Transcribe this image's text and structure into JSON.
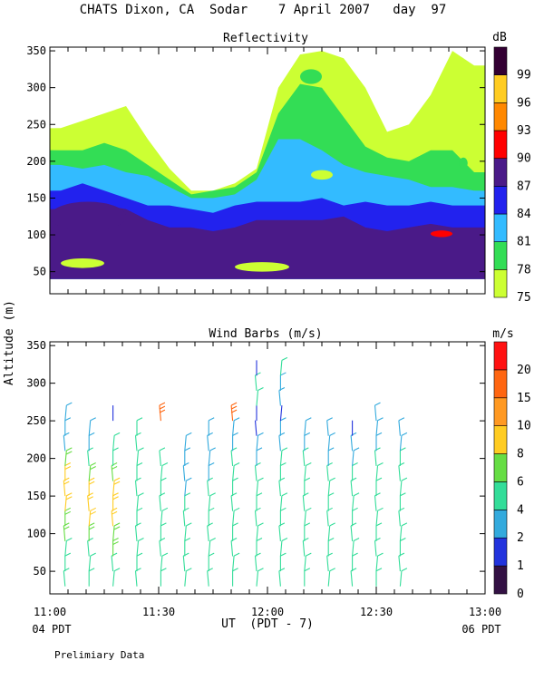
{
  "header": {
    "title": "CHATS Dixon, CA  Sodar    7 April 2007   day  97"
  },
  "shared": {
    "ylabel": "Altitude (m)",
    "xlabel": "UT  (PDT - 7)",
    "x_left_note": "04 PDT",
    "x_right_note": "06 PDT",
    "footer": "Prelimiary Data",
    "x_tick_labels": [
      "11:00",
      "11:30",
      "12:00",
      "12:30",
      "13:00"
    ]
  },
  "colors": {
    "reflectivity_levels": [
      "#ccff33",
      "#33dd55",
      "#33bbff",
      "#2222ee",
      "#4a1a88",
      "#ff0000",
      "#ff8800",
      "#ffcc22",
      "#330033"
    ],
    "wind_levels": [
      "#331144",
      "#2233dd",
      "#33aadd",
      "#33dd99",
      "#66dd44",
      "#ffcc22",
      "#ff9922",
      "#ff6611",
      "#ff1111"
    ]
  },
  "chart_data": [
    {
      "type": "heatmap",
      "title": "Reflectivity",
      "ylabel": "Altitude (m)",
      "xlim": [
        11.0,
        13.0
      ],
      "ylim": [
        20,
        355
      ],
      "y_ticks": [
        50,
        100,
        150,
        200,
        250,
        300,
        350
      ],
      "colorbar": {
        "unit": "dB",
        "levels": [
          "75",
          "78",
          "81",
          "84",
          "87",
          "90",
          "93",
          "96",
          "99"
        ]
      },
      "x_hours": [
        11.05,
        11.15,
        11.25,
        11.35,
        11.45,
        11.55,
        11.65,
        11.75,
        11.85,
        11.95,
        12.05,
        12.15,
        12.25,
        12.35,
        12.45,
        12.55,
        12.65,
        12.75,
        12.85,
        12.95
      ],
      "contours": [
        {
          "level": "75",
          "top_altitude_m": [
            245,
            255,
            265,
            275,
            230,
            190,
            160,
            160,
            170,
            190,
            300,
            345,
            350,
            340,
            300,
            240,
            250,
            290,
            350,
            330
          ]
        },
        {
          "level": "78",
          "top_altitude_m": [
            215,
            215,
            225,
            215,
            195,
            175,
            155,
            160,
            165,
            185,
            265,
            305,
            300,
            260,
            220,
            205,
            200,
            215,
            215,
            185
          ]
        },
        {
          "level": "81",
          "top_altitude_m": [
            195,
            190,
            195,
            185,
            180,
            165,
            150,
            150,
            155,
            175,
            230,
            230,
            215,
            195,
            185,
            180,
            175,
            165,
            165,
            160
          ]
        },
        {
          "level": "84",
          "top_altitude_m": [
            160,
            170,
            160,
            150,
            140,
            140,
            135,
            130,
            140,
            145,
            145,
            145,
            150,
            140,
            145,
            140,
            140,
            145,
            140,
            140
          ]
        },
        {
          "level": "87",
          "top_altitude_m": [
            135,
            135,
            140,
            135,
            120,
            110,
            110,
            105,
            110,
            120,
            120,
            120,
            120,
            125,
            110,
            105,
            110,
            115,
            110,
            110
          ]
        }
      ],
      "cells": [
        {
          "x0": 11.0,
          "x1": 11.35,
          "y0": 105,
          "y1": 145,
          "level": "87"
        },
        {
          "x0": 12.75,
          "x1": 12.85,
          "y0": 97,
          "y1": 106,
          "level": "90"
        },
        {
          "x0": 12.15,
          "x1": 12.25,
          "y0": 305,
          "y1": 325,
          "level": "78"
        },
        {
          "x0": 12.2,
          "x1": 12.3,
          "y0": 175,
          "y1": 188,
          "level": "75"
        },
        {
          "x0": 12.88,
          "x1": 12.92,
          "y0": 190,
          "y1": 205,
          "level": "78"
        },
        {
          "x0": 11.05,
          "x1": 11.25,
          "y0": 55,
          "y1": 68,
          "level": "75"
        },
        {
          "x0": 11.85,
          "x1": 12.1,
          "y0": 50,
          "y1": 63,
          "level": "75"
        }
      ]
    },
    {
      "type": "scatter",
      "title": "Wind Barbs (m/s)",
      "ylabel": "Altitude (m)",
      "xlim": [
        11.0,
        13.0
      ],
      "ylim": [
        20,
        355
      ],
      "y_ticks": [
        50,
        100,
        150,
        200,
        250,
        300,
        350
      ],
      "colorbar": {
        "unit": "m/s",
        "levels": [
          "0",
          "1",
          "2",
          "4",
          "6",
          "8",
          "10",
          "15",
          "20"
        ]
      },
      "altitudes_m": [
        30,
        50,
        70,
        90,
        110,
        130,
        150,
        170,
        190,
        210,
        230,
        250,
        270,
        290,
        310,
        330
      ],
      "profiles": [
        {
          "x": 11.07,
          "speeds": [
            4,
            4,
            4,
            6,
            6,
            8,
            8,
            8,
            6,
            2,
            2,
            2,
            null,
            null,
            null,
            null
          ]
        },
        {
          "x": 11.18,
          "speeds": [
            4,
            4,
            4,
            6,
            8,
            8,
            8,
            6,
            4,
            2,
            2,
            null,
            null,
            null,
            null,
            null
          ]
        },
        {
          "x": 11.29,
          "speeds": [
            4,
            4,
            6,
            6,
            8,
            8,
            8,
            6,
            4,
            4,
            null,
            1,
            null,
            null,
            null,
            null
          ]
        },
        {
          "x": 11.4,
          "speeds": [
            4,
            4,
            4,
            4,
            4,
            4,
            4,
            4,
            4,
            4,
            4,
            null,
            null,
            null,
            null,
            null
          ]
        },
        {
          "x": 11.51,
          "speeds": [
            4,
            4,
            4,
            4,
            4,
            4,
            4,
            4,
            4,
            null,
            null,
            15,
            null,
            null,
            null,
            null
          ]
        },
        {
          "x": 11.62,
          "speeds": [
            4,
            4,
            4,
            4,
            4,
            4,
            2,
            2,
            2,
            2,
            null,
            null,
            null,
            null,
            null,
            null
          ]
        },
        {
          "x": 11.73,
          "speeds": [
            4,
            4,
            4,
            4,
            4,
            4,
            4,
            2,
            2,
            2,
            2,
            null,
            null,
            null,
            null,
            null
          ]
        },
        {
          "x": 11.84,
          "speeds": [
            4,
            4,
            4,
            4,
            4,
            4,
            4,
            4,
            4,
            2,
            2,
            15,
            null,
            null,
            null,
            null
          ]
        },
        {
          "x": 11.95,
          "speeds": [
            4,
            4,
            4,
            4,
            4,
            4,
            4,
            4,
            2,
            2,
            1,
            1,
            4,
            4,
            1,
            null
          ]
        },
        {
          "x": 12.06,
          "speeds": [
            4,
            4,
            4,
            4,
            4,
            4,
            4,
            4,
            4,
            2,
            2,
            1,
            2,
            2,
            4,
            null
          ]
        },
        {
          "x": 12.17,
          "speeds": [
            4,
            4,
            4,
            4,
            4,
            4,
            4,
            4,
            4,
            2,
            2,
            null,
            null,
            null,
            null,
            null
          ]
        },
        {
          "x": 12.28,
          "speeds": [
            4,
            4,
            4,
            4,
            4,
            4,
            4,
            4,
            2,
            2,
            2,
            null,
            null,
            null,
            null,
            null
          ]
        },
        {
          "x": 12.39,
          "speeds": [
            4,
            4,
            4,
            4,
            4,
            4,
            4,
            4,
            2,
            2,
            1,
            null,
            null,
            null,
            null,
            null
          ]
        },
        {
          "x": 12.5,
          "speeds": [
            4,
            4,
            4,
            4,
            4,
            4,
            4,
            4,
            4,
            2,
            2,
            2,
            null,
            null,
            null,
            null
          ]
        },
        {
          "x": 12.61,
          "speeds": [
            4,
            4,
            4,
            4,
            4,
            4,
            4,
            4,
            4,
            2,
            2,
            null,
            null,
            null,
            null,
            null
          ]
        }
      ]
    }
  ]
}
